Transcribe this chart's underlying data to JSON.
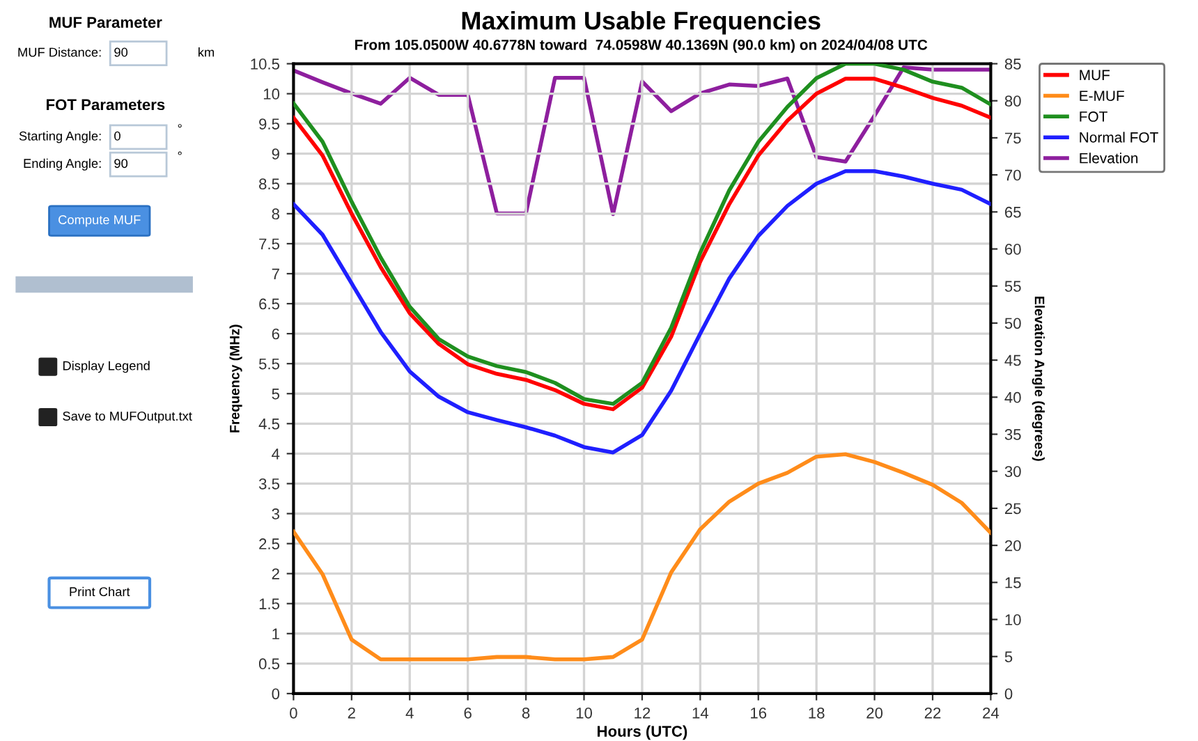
{
  "chart_data": {
    "type": "line",
    "title": "Maximum Usable Frequencies",
    "subtitle": "From 105.0500W 40.6778N toward  74.0598W 40.1369N (90.0 km) on 2024/04/08 UTC",
    "xlabel": "Hours (UTC)",
    "ylabel": "Frequency (MHz)",
    "y2label": "Elevation Angle (degrees)",
    "x": [
      0,
      1,
      2,
      3,
      4,
      5,
      6,
      7,
      8,
      9,
      10,
      11,
      12,
      13,
      14,
      15,
      16,
      17,
      18,
      19,
      20,
      21,
      22,
      23,
      24
    ],
    "series": [
      {
        "name": "MUF",
        "color": "#ff0000",
        "values": [
          9.6,
          8.97,
          8.0,
          7.11,
          6.34,
          5.83,
          5.49,
          5.33,
          5.23,
          5.06,
          4.83,
          4.74,
          5.1,
          5.95,
          7.2,
          8.16,
          8.97,
          9.55,
          10.0,
          10.25,
          10.25,
          10.1,
          9.93,
          9.8,
          9.6
        ]
      },
      {
        "name": "E-MUF",
        "color": "#ff8c1a",
        "values": [
          2.7,
          1.99,
          0.9,
          0.57,
          0.57,
          0.57,
          0.57,
          0.61,
          0.61,
          0.57,
          0.57,
          0.61,
          0.9,
          2.02,
          2.74,
          3.2,
          3.5,
          3.68,
          3.95,
          3.99,
          3.86,
          3.68,
          3.48,
          3.18,
          2.68
        ]
      },
      {
        "name": "FOT",
        "color": "#1f8f1f",
        "values": [
          9.84,
          9.2,
          8.2,
          7.27,
          6.45,
          5.91,
          5.62,
          5.46,
          5.36,
          5.18,
          4.91,
          4.83,
          5.18,
          6.1,
          7.35,
          8.39,
          9.2,
          9.78,
          10.26,
          10.5,
          10.5,
          10.4,
          10.2,
          10.1,
          9.82
        ]
      },
      {
        "name": "Normal FOT",
        "color": "#1f1fff",
        "values": [
          8.16,
          7.65,
          6.84,
          6.03,
          5.37,
          4.95,
          4.69,
          4.56,
          4.44,
          4.3,
          4.11,
          4.02,
          4.31,
          5.05,
          6.0,
          6.92,
          7.63,
          8.13,
          8.5,
          8.71,
          8.71,
          8.62,
          8.5,
          8.4,
          8.16
        ]
      },
      {
        "name": "Elevation",
        "color": "#8e1f9e",
        "axis": "y2",
        "values": [
          84.1,
          82.5,
          81,
          79.6,
          83.1,
          80.8,
          80.8,
          64.8,
          64.8,
          83.1,
          83.1,
          64.7,
          82.6,
          78.6,
          81,
          82.2,
          82,
          83,
          72.4,
          71.8,
          78,
          84.5,
          84.2,
          84.2,
          84.2
        ]
      }
    ],
    "xlim": [
      0,
      24
    ],
    "xticks": [
      0,
      2,
      4,
      6,
      8,
      10,
      12,
      14,
      16,
      18,
      20,
      22,
      24
    ],
    "ylim": [
      0,
      10.5
    ],
    "yticks": [
      0,
      0.5,
      1,
      1.5,
      2,
      2.5,
      3,
      3.5,
      4,
      4.5,
      5,
      5.5,
      6,
      6.5,
      7,
      7.5,
      8,
      8.5,
      9,
      9.5,
      10,
      10.5
    ],
    "y2lim": [
      0,
      85
    ],
    "y2ticks": [
      0,
      5,
      10,
      15,
      20,
      25,
      30,
      35,
      40,
      45,
      50,
      55,
      60,
      65,
      70,
      75,
      80,
      85
    ],
    "grid": true,
    "legend": "right",
    "marker": "none",
    "line_style": "solid",
    "annotations": [
      "MUF Parameter",
      "MUF Distance:",
      "90",
      "km",
      "FOT Parameters",
      "Starting Angle:",
      "0",
      "°",
      "Ending Angle:",
      "90",
      "°",
      "Compute MUF",
      "Display Legend",
      "Save to MUFOutput.txt",
      "Print Chart"
    ]
  }
}
